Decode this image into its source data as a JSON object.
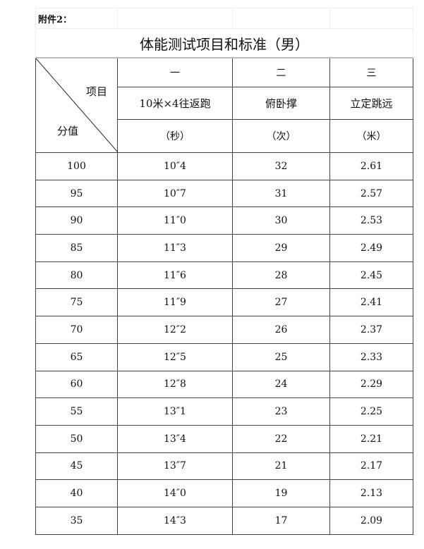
{
  "attachment_label": "附件2：",
  "title": "体能测试项目和标准（男）",
  "corner": {
    "item_label": "项目",
    "score_label": "分值"
  },
  "columns": [
    {
      "number": "一",
      "name": "10米×4往返跑",
      "unit": "（秒）"
    },
    {
      "number": "二",
      "name": "俯卧撑",
      "unit": "（次）"
    },
    {
      "number": "三",
      "name": "立定跳远",
      "unit": "（米）"
    }
  ],
  "rows": [
    [
      "100",
      "10″4",
      "32",
      "2.61"
    ],
    [
      "95",
      "10″7",
      "31",
      "2.57"
    ],
    [
      "90",
      "11″0",
      "30",
      "2.53"
    ],
    [
      "85",
      "11″3",
      "29",
      "2.49"
    ],
    [
      "80",
      "11″6",
      "28",
      "2.45"
    ],
    [
      "75",
      "11″9",
      "27",
      "2.41"
    ],
    [
      "70",
      "12″2",
      "26",
      "2.37"
    ],
    [
      "65",
      "12″5",
      "25",
      "2.33"
    ],
    [
      "60",
      "12″8",
      "24",
      "2.29"
    ],
    [
      "55",
      "13″1",
      "23",
      "2.25"
    ],
    [
      "50",
      "13″4",
      "22",
      "2.21"
    ],
    [
      "45",
      "13″7",
      "21",
      "2.17"
    ],
    [
      "40",
      "14″0",
      "19",
      "2.13"
    ],
    [
      "35",
      "14″3",
      "17",
      "2.09"
    ]
  ]
}
